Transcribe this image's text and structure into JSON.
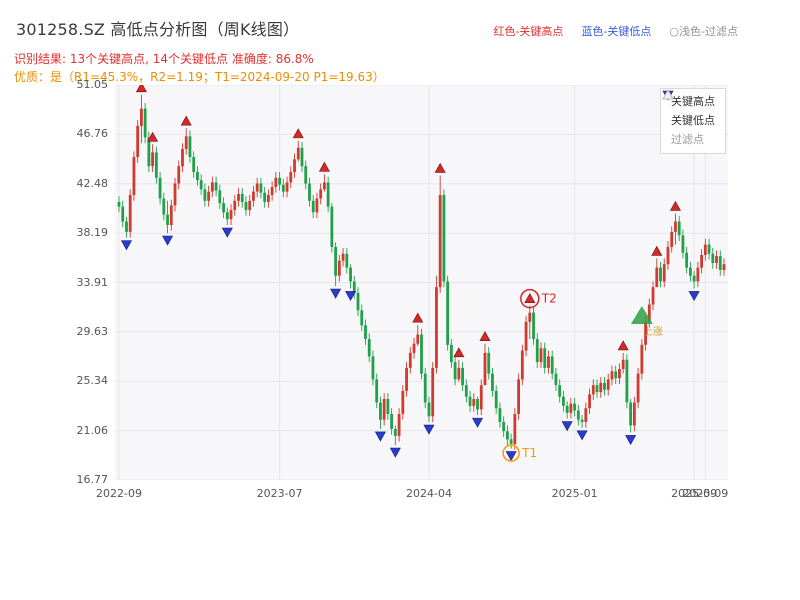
{
  "header": {
    "title": "301258.SZ 高低点分析图（周K线图）",
    "legend_top": [
      {
        "label": "红色-关键高点",
        "color": "#e03131"
      },
      {
        "label": "蓝色-关键低点",
        "color": "#3b5bdb"
      },
      {
        "label": "○浅色-过滤点",
        "color": "#909296"
      }
    ],
    "result_line": "识别结果: 13个关键高点, 14个关键低点  准确度: 86.8%",
    "quality_line": "优质：是（R1=45.3%，R2=1.19；T1=2024-09-20 P1=19.63）"
  },
  "legend_box": {
    "items": [
      {
        "label": "关键高点",
        "marker": "triangle-up",
        "color": "#d62728",
        "text_color": "#333333"
      },
      {
        "label": "关键低点",
        "marker": "triangle-down",
        "color": "#2b3bd0",
        "text_color": "#333333"
      },
      {
        "label": "过滤点",
        "marker": "triangle-up-light",
        "color": "#f2f2f2",
        "text_color": "#999999"
      }
    ]
  },
  "chart_data": {
    "type": "candlestick",
    "symbol": "301258.SZ",
    "period": "weekly",
    "title": "301258.SZ 高低点分析图（周K线图）",
    "x_start": "2022-09",
    "x_end": "2025-09",
    "ylim": [
      16.77,
      51.05
    ],
    "yticks": [
      51.05,
      46.76,
      42.48,
      38.19,
      33.91,
      29.63,
      25.34,
      21.06,
      16.77
    ],
    "xticks": [
      {
        "week": 0,
        "label": "2022-09"
      },
      {
        "week": 43,
        "label": "2023-07"
      },
      {
        "week": 83,
        "label": "2024-04"
      },
      {
        "week": 122,
        "label": "2025-01"
      },
      {
        "week": 154,
        "label": "2025-09"
      },
      {
        "week": 157,
        "label": "2025-09"
      }
    ],
    "closes": [
      40.5,
      39.2,
      38.3,
      41.5,
      44.8,
      47.5,
      49.0,
      46.5,
      44.0,
      45.2,
      43.0,
      41.2,
      39.8,
      38.9,
      40.6,
      42.5,
      44.0,
      45.5,
      46.6,
      44.8,
      43.5,
      42.8,
      42.0,
      41.0,
      41.8,
      42.6,
      41.9,
      40.8,
      40.0,
      39.4,
      40.2,
      41.0,
      41.6,
      40.9,
      40.2,
      41.0,
      41.8,
      42.5,
      41.7,
      40.9,
      41.5,
      42.2,
      43.0,
      42.4,
      41.8,
      42.6,
      43.5,
      44.6,
      45.6,
      44.0,
      42.5,
      41.0,
      40.0,
      41.2,
      42.0,
      42.6,
      40.5,
      37.0,
      34.5,
      35.8,
      36.4,
      35.2,
      34.0,
      33.0,
      31.5,
      30.2,
      29.0,
      27.5,
      25.5,
      23.5,
      22.0,
      23.8,
      22.5,
      21.2,
      20.6,
      22.5,
      24.5,
      26.5,
      27.8,
      28.6,
      29.4,
      26.0,
      23.5,
      22.3,
      26.5,
      33.5,
      41.5,
      34.0,
      28.5,
      27.0,
      25.5,
      26.5,
      25.0,
      24.0,
      23.2,
      23.8,
      22.9,
      25.0,
      27.8,
      26.0,
      24.5,
      23.0,
      21.8,
      21.0,
      20.3,
      19.9,
      22.5,
      25.5,
      28.0,
      30.5,
      31.3,
      29.0,
      27.0,
      28.2,
      26.5,
      27.5,
      26.0,
      25.0,
      24.0,
      23.2,
      22.6,
      23.4,
      22.8,
      22.0,
      21.8,
      23.0,
      24.2,
      25.0,
      24.4,
      25.2,
      24.6,
      25.5,
      26.2,
      25.6,
      26.4,
      27.2,
      23.5,
      21.5,
      23.5,
      26.0,
      28.5,
      30.5,
      32.0,
      33.5,
      35.2,
      34.0,
      35.5,
      37.0,
      38.3,
      39.2,
      38.0,
      36.5,
      35.2,
      34.5,
      34.0,
      35.2,
      36.3,
      37.2,
      36.4,
      35.6,
      36.2,
      35.0,
      35.5
    ],
    "wick_overrides": {
      "2": [
        37.8,
        39.6
      ],
      "6": [
        46.0,
        50.2
      ],
      "9": [
        43.5,
        45.9
      ],
      "13": [
        38.2,
        41.0
      ],
      "18": [
        45.0,
        47.3
      ],
      "29": [
        38.9,
        40.4
      ],
      "48": [
        44.4,
        46.2
      ],
      "55": [
        41.8,
        43.3
      ],
      "57": [
        36.5,
        40.8
      ],
      "58": [
        33.6,
        37.4
      ],
      "62": [
        33.4,
        35.5
      ],
      "70": [
        21.2,
        24.0
      ],
      "74": [
        19.8,
        21.5
      ],
      "80": [
        28.4,
        30.2
      ],
      "83": [
        21.8,
        24.0
      ],
      "85": [
        26.0,
        34.5
      ],
      "86": [
        33.0,
        43.2
      ],
      "91": [
        25.3,
        27.2
      ],
      "96": [
        22.4,
        24.0
      ],
      "98": [
        25.8,
        28.6
      ],
      "105": [
        19.5,
        20.8
      ],
      "110": [
        29.0,
        31.9
      ],
      "120": [
        22.1,
        23.6
      ],
      "124": [
        21.3,
        22.4
      ],
      "135": [
        26.0,
        27.8
      ],
      "137": [
        20.9,
        23.8
      ],
      "144": [
        33.8,
        36.0
      ],
      "149": [
        37.2,
        39.9
      ],
      "154": [
        33.4,
        34.9
      ]
    },
    "key_highs": [
      {
        "week": 6,
        "price": 50.2
      },
      {
        "week": 9,
        "price": 45.9
      },
      {
        "week": 18,
        "price": 47.3
      },
      {
        "week": 48,
        "price": 46.2
      },
      {
        "week": 55,
        "price": 43.3
      },
      {
        "week": 80,
        "price": 30.2
      },
      {
        "week": 86,
        "price": 43.2
      },
      {
        "week": 91,
        "price": 27.2
      },
      {
        "week": 98,
        "price": 28.6
      },
      {
        "week": 110,
        "price": 31.9
      },
      {
        "week": 135,
        "price": 27.8
      },
      {
        "week": 144,
        "price": 36.0
      },
      {
        "week": 149,
        "price": 39.9
      }
    ],
    "key_lows": [
      {
        "week": 2,
        "price": 37.8
      },
      {
        "week": 13,
        "price": 38.2
      },
      {
        "week": 29,
        "price": 38.9
      },
      {
        "week": 58,
        "price": 33.6
      },
      {
        "week": 62,
        "price": 33.4
      },
      {
        "week": 70,
        "price": 21.2
      },
      {
        "week": 74,
        "price": 19.8
      },
      {
        "week": 83,
        "price": 21.8
      },
      {
        "week": 96,
        "price": 22.4
      },
      {
        "week": 105,
        "price": 19.5
      },
      {
        "week": 120,
        "price": 22.1
      },
      {
        "week": 124,
        "price": 21.3
      },
      {
        "week": 137,
        "price": 20.9
      },
      {
        "week": 154,
        "price": 33.4
      }
    ],
    "annotations": {
      "t1": {
        "week": 105,
        "price": 19.63,
        "label": "T1",
        "color": "#ff9800"
      },
      "t2": {
        "week": 110,
        "price": 31.9,
        "label": "T2",
        "color": "#d62728"
      },
      "signal": {
        "week": 140,
        "price": 31.0,
        "label": "上涨",
        "color": "#2ea043",
        "text_color": "#c9a227"
      }
    },
    "colors": {
      "up": "#d03a2f",
      "down": "#1fa049",
      "up_marker": "#d62728",
      "down_marker": "#2b3bd0",
      "grid": "#e5e5ec",
      "plot_bg": "#f7f7fa"
    }
  }
}
